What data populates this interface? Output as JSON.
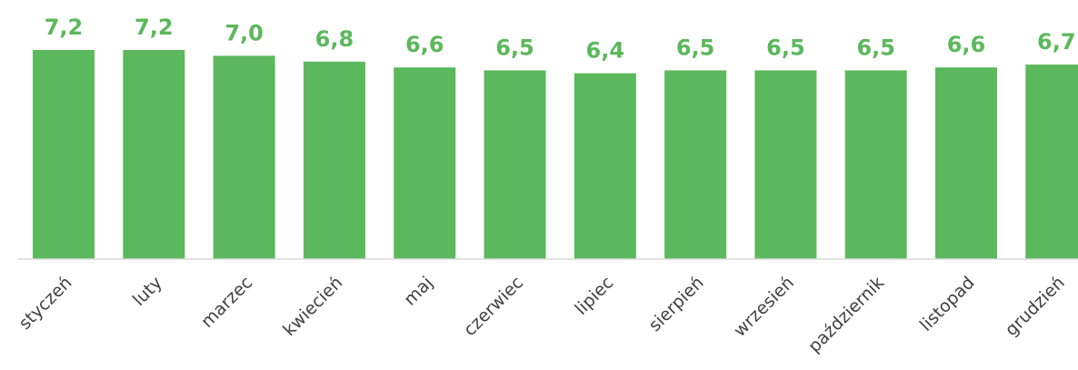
{
  "chart_data": {
    "type": "bar",
    "categories": [
      "styczeń",
      "luty",
      "marzec",
      "kwiecień",
      "maj",
      "czerwiec",
      "lipiec",
      "sierpień",
      "wrzesień",
      "październik",
      "listopad",
      "grudzień"
    ],
    "values": [
      7.2,
      7.2,
      7.0,
      6.8,
      6.6,
      6.5,
      6.4,
      6.5,
      6.5,
      6.5,
      6.6,
      6.7
    ],
    "value_labels": [
      "7,2",
      "7,2",
      "7,0",
      "6,8",
      "6,6",
      "6,5",
      "6,4",
      "6,5",
      "6,5",
      "6,5",
      "6,6",
      "6,7"
    ],
    "title": "",
    "xlabel": "",
    "ylabel": "",
    "ylim": [
      0,
      7.2
    ],
    "grid": false,
    "legend": "none",
    "colors": {
      "bar": "#5cb85c",
      "value_label": "#5cb85c",
      "category_label": "#404040",
      "baseline": "#d9d9d9"
    }
  }
}
